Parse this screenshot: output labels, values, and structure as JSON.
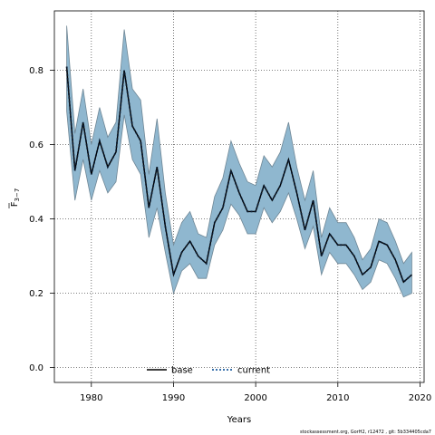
{
  "chart_data": {
    "type": "line",
    "title": "",
    "xlabel": "Years",
    "ylabel_main": "F",
    "ylabel_sub": "3−7",
    "xlim": [
      1975.5,
      2020.5
    ],
    "ylim": [
      -0.04,
      0.96
    ],
    "xticks": [
      1980,
      1990,
      2000,
      2010,
      2020
    ],
    "xtick_labels": [
      "1980",
      "1990",
      "2000",
      "2010",
      "2020"
    ],
    "yticks": [
      0.0,
      0.2,
      0.4,
      0.6,
      0.8
    ],
    "ytick_labels": [
      "0.0",
      "0.2",
      "0.4",
      "0.6",
      "0.8"
    ],
    "grid": true,
    "legend_position": "bottom-center",
    "x": [
      1977,
      1978,
      1979,
      1980,
      1981,
      1982,
      1983,
      1984,
      1985,
      1986,
      1987,
      1988,
      1989,
      1990,
      1991,
      1992,
      1993,
      1994,
      1995,
      1996,
      1997,
      1998,
      1999,
      2000,
      2001,
      2002,
      2003,
      2004,
      2005,
      2006,
      2007,
      2008,
      2009,
      2010,
      2011,
      2012,
      2013,
      2014,
      2015,
      2016,
      2017,
      2018,
      2019
    ],
    "band": {
      "color": "#8fb7cf",
      "edge_color": "#6f8796",
      "upper": [
        0.92,
        0.63,
        0.75,
        0.6,
        0.7,
        0.62,
        0.66,
        0.91,
        0.75,
        0.72,
        0.52,
        0.67,
        0.47,
        0.33,
        0.39,
        0.42,
        0.36,
        0.35,
        0.46,
        0.51,
        0.61,
        0.55,
        0.5,
        0.49,
        0.57,
        0.54,
        0.58,
        0.66,
        0.54,
        0.45,
        0.53,
        0.35,
        0.43,
        0.39,
        0.39,
        0.35,
        0.29,
        0.32,
        0.4,
        0.39,
        0.34,
        0.28,
        0.31
      ],
      "lower": [
        0.69,
        0.45,
        0.56,
        0.45,
        0.53,
        0.47,
        0.5,
        0.68,
        0.56,
        0.52,
        0.35,
        0.43,
        0.31,
        0.2,
        0.26,
        0.28,
        0.24,
        0.24,
        0.33,
        0.37,
        0.44,
        0.41,
        0.36,
        0.36,
        0.43,
        0.39,
        0.42,
        0.47,
        0.4,
        0.32,
        0.38,
        0.25,
        0.31,
        0.28,
        0.28,
        0.25,
        0.21,
        0.23,
        0.29,
        0.28,
        0.24,
        0.19,
        0.2
      ]
    },
    "series": [
      {
        "name": "base",
        "color": "#000000",
        "style": "solid",
        "values": [
          0.81,
          0.53,
          0.66,
          0.52,
          0.61,
          0.54,
          0.58,
          0.8,
          0.65,
          0.61,
          0.43,
          0.54,
          0.38,
          0.25,
          0.31,
          0.34,
          0.3,
          0.28,
          0.39,
          0.43,
          0.53,
          0.47,
          0.42,
          0.42,
          0.49,
          0.45,
          0.49,
          0.56,
          0.47,
          0.37,
          0.45,
          0.3,
          0.36,
          0.33,
          0.33,
          0.3,
          0.25,
          0.27,
          0.34,
          0.33,
          0.29,
          0.23,
          0.25
        ]
      },
      {
        "name": "current",
        "color": "#1f5fa0",
        "style": "dotted",
        "values": [
          0.81,
          0.53,
          0.66,
          0.52,
          0.61,
          0.54,
          0.58,
          0.8,
          0.65,
          0.61,
          0.43,
          0.54,
          0.38,
          0.25,
          0.31,
          0.34,
          0.3,
          0.28,
          0.39,
          0.43,
          0.53,
          0.47,
          0.42,
          0.42,
          0.49,
          0.45,
          0.49,
          0.56,
          0.47,
          0.37,
          0.45,
          0.3,
          0.36,
          0.33,
          0.33,
          0.3,
          0.25,
          0.27,
          0.34,
          0.33,
          0.29,
          0.23,
          0.25
        ]
      }
    ]
  },
  "footer": "stockassessment.org, GorH2, r12472 , git: 5b334405cda7"
}
